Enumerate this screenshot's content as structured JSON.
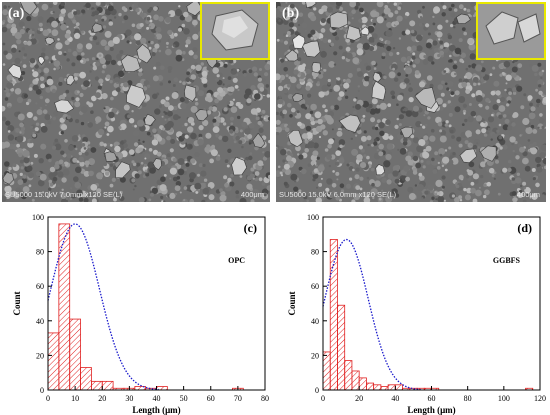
{
  "panels": {
    "a": {
      "label": "(a)",
      "footer_info": "SU5000 15.0kV 7.0mm x120 SE(L)",
      "scale_bar": "400μm"
    },
    "b": {
      "label": "(b)",
      "footer_info": "SU5000 15.0kV 6.0mm x120 SE(L)",
      "scale_bar": "400μm"
    }
  },
  "colors": {
    "bar_stroke": "#e02020",
    "bar_hatch": "#e02020",
    "fit_curve": "#1a1acc",
    "inset_border": "#e8e800"
  },
  "chart_data": [
    {
      "panel_label": "(c)",
      "type": "bar",
      "series": [
        {
          "name": "OPC"
        }
      ],
      "legend_text": "OPC",
      "xlabel": "Length (μm)",
      "ylabel": "Count",
      "xlim": [
        0,
        80
      ],
      "ylim": [
        0,
        100
      ],
      "xticks": [
        0,
        10,
        20,
        30,
        40,
        50,
        60,
        70,
        80
      ],
      "yticks": [
        0,
        20,
        40,
        60,
        80,
        100
      ],
      "bin_width": 4,
      "bins_start": [
        0,
        4,
        8,
        12,
        16,
        20,
        24,
        28,
        32,
        36,
        40,
        44,
        48,
        52,
        56,
        60,
        64,
        68,
        72
      ],
      "values": [
        33,
        96,
        41,
        13,
        5,
        5,
        1,
        1,
        2,
        1,
        2,
        0,
        0,
        0,
        0,
        0,
        0,
        1,
        0
      ],
      "fit": {
        "type": "gaussian",
        "peak": 96,
        "mean": 10,
        "sd": 9
      }
    },
    {
      "panel_label": "(d)",
      "type": "bar",
      "series": [
        {
          "name": "GGBFS"
        }
      ],
      "legend_text": "GGBFS",
      "xlabel": "Length (μm)",
      "ylabel": "Count",
      "xlim": [
        0,
        120
      ],
      "ylim": [
        0,
        100
      ],
      "xticks": [
        0,
        20,
        40,
        60,
        80,
        100,
        120
      ],
      "yticks": [
        0,
        20,
        40,
        60,
        80,
        100
      ],
      "bin_width": 4,
      "bins_start": [
        0,
        4,
        8,
        12,
        16,
        20,
        24,
        28,
        32,
        36,
        40,
        44,
        48,
        52,
        56,
        60,
        64,
        68,
        72,
        76,
        80,
        84,
        88,
        92,
        96,
        100,
        104,
        108,
        112
      ],
      "values": [
        22,
        87,
        49,
        17,
        11,
        7,
        4,
        3,
        2,
        3,
        3,
        1,
        1,
        1,
        1,
        1,
        0,
        0,
        0,
        0,
        0,
        0,
        0,
        0,
        0,
        0,
        0,
        0,
        1
      ],
      "fit": {
        "type": "gaussian",
        "peak": 87,
        "mean": 13,
        "sd": 12
      }
    }
  ]
}
